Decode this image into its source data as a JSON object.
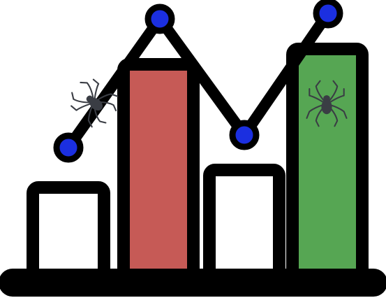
{
  "colors": {
    "background": "#ffffff",
    "outline": "#000000",
    "marker_fill": "#1b2fe0",
    "spider": "#3a3d44",
    "bar_fills": [
      "#ffffff",
      "#c65a56",
      "#ffffff",
      "#56a653"
    ]
  },
  "icons": {
    "line_spider": "spider-icon",
    "bar_spider": "spider-icon"
  }
}
